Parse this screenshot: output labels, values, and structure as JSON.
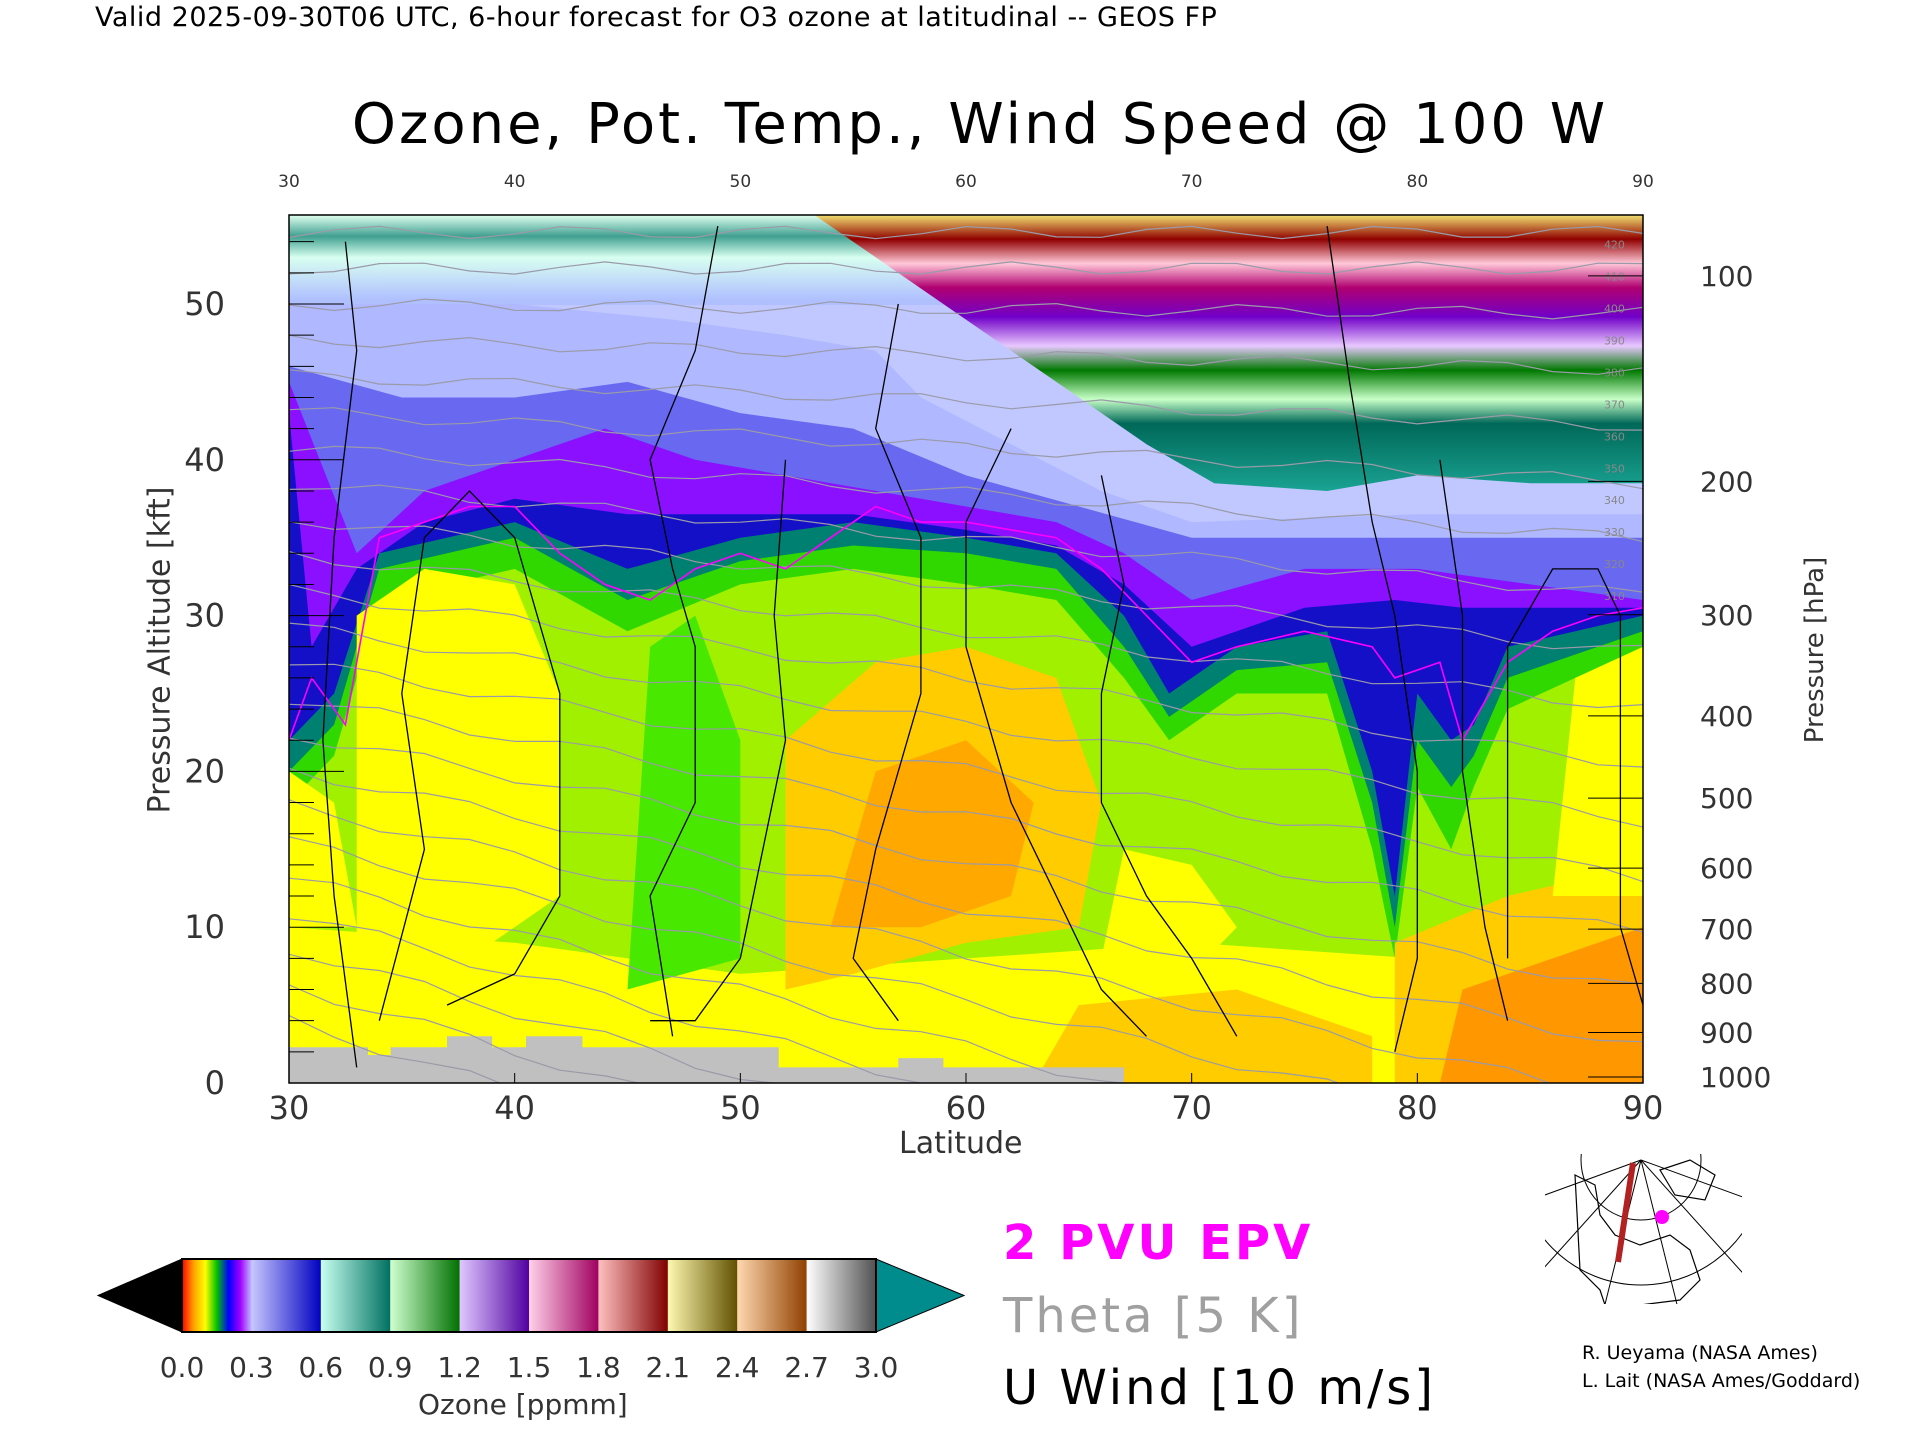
{
  "header": {
    "subtitle": "Valid 2025-09-30T06 UTC, 6-hour forecast for O3 ozone at latitudinal -- GEOS FP",
    "title": "Ozone, Pot. Temp., Wind Speed @ 100 W"
  },
  "chart_data": {
    "type": "heatmap",
    "title": "Ozone, Pot. Temp., Wind Speed @ 100 W",
    "xlabel": "Latitude",
    "ylabel": "Pressure Altitude [kft]",
    "ylabel_right": "Pressure [hPa]",
    "xlim": [
      30,
      90
    ],
    "ylim": [
      0,
      56
    ],
    "x_ticks": [
      "30",
      "40",
      "50",
      "60",
      "70",
      "80",
      "90"
    ],
    "x_ticks_top": [
      "30",
      "40",
      "50",
      "60",
      "70",
      "80",
      "90"
    ],
    "y_ticks": [
      "0",
      "10",
      "20",
      "30",
      "40",
      "50"
    ],
    "y_ticks_right": [
      "100",
      "200",
      "300",
      "400",
      "500",
      "600",
      "700",
      "800",
      "900",
      "1000"
    ],
    "theta_labels": [
      "310",
      "320",
      "330",
      "340",
      "350",
      "360",
      "370",
      "380",
      "390",
      "400",
      "410",
      "420"
    ],
    "colorbar": {
      "label": "Ozone [ppmm]",
      "ticks": [
        "0.0",
        "0.3",
        "0.6",
        "0.9",
        "1.2",
        "1.5",
        "1.8",
        "2.1",
        "2.4",
        "2.7",
        "3.0"
      ],
      "range": [
        0.0,
        3.0
      ],
      "under_color": "#000000",
      "over_color": "#008c8c"
    },
    "legend": {
      "epv": "2 PVU EPV",
      "theta": "Theta [5 K]",
      "wind": "U Wind [10 m/s]",
      "epv_color": "#ff00ff",
      "theta_color": "#a0a0a0",
      "wind_color": "#000000"
    },
    "grid": false
  },
  "credits": {
    "line1": "R. Ueyama (NASA Ames)",
    "line2": "L. Lait (NASA Ames/Goddard)"
  },
  "inset_map": {
    "section_line_color": "#b22222",
    "marker_color": "#ff00ff"
  }
}
